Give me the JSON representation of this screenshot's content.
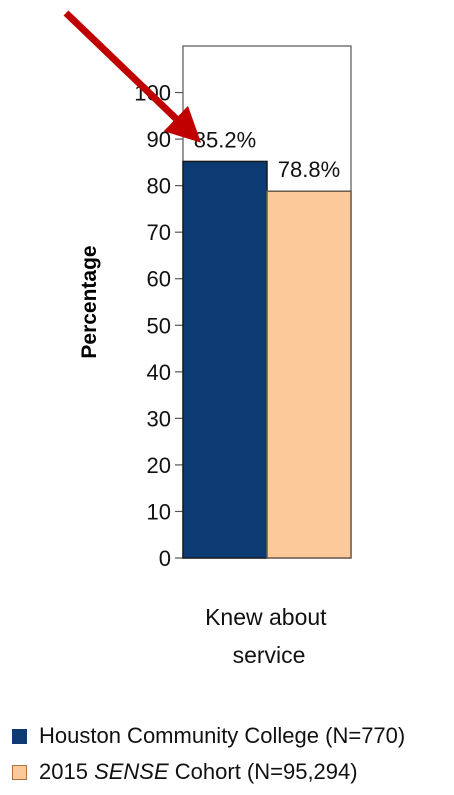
{
  "chart_data": {
    "type": "bar",
    "categories": [
      "Knew about service"
    ],
    "category_lines": [
      "Knew about",
      "service"
    ],
    "series": [
      {
        "name": "Houston Community College (N=770)",
        "values": [
          85.2
        ],
        "data_label": "85.2%",
        "color": "#0c3b73"
      },
      {
        "name_parts": {
          "before": "2015 ",
          "italic": "SENSE",
          "after": " Cohort (N=95,294)"
        },
        "values": [
          78.8
        ],
        "data_label": "78.8%",
        "color": "#fcc99a"
      }
    ],
    "ylabel": "Percentage",
    "ylim": [
      0,
      110
    ],
    "yticks": [
      0,
      10,
      20,
      30,
      40,
      50,
      60,
      70,
      80,
      90,
      100
    ],
    "grid": false,
    "legend_position": "bottom-left",
    "annotation": {
      "type": "arrow",
      "color": "#c00000",
      "points_to": "85.2%"
    }
  }
}
